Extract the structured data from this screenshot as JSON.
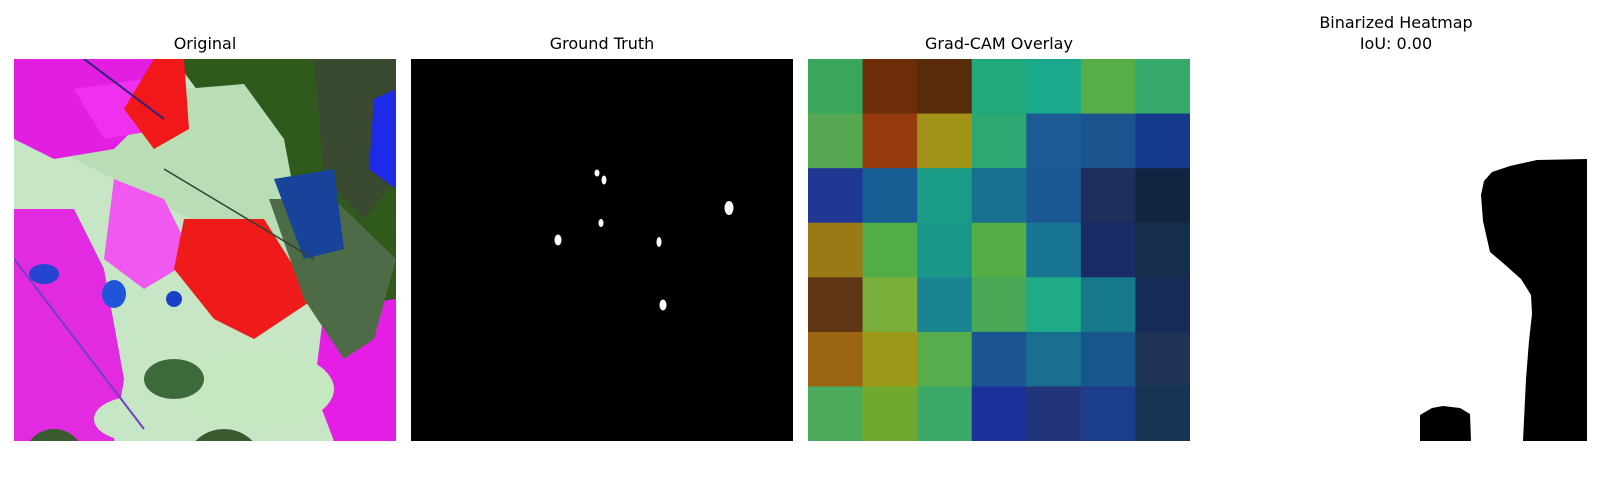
{
  "panels": [
    {
      "title": "Original"
    },
    {
      "title": "Ground Truth"
    },
    {
      "title": "Grad-CAM Overlay"
    },
    {
      "title": "Binarized Heatmap",
      "subtitle": "IoU: 0.00"
    }
  ],
  "gradcam": {
    "grid_size": 7,
    "colors": [
      [
        "#3aa65c",
        "#6e2d0a",
        "#5a2b0a",
        "#20a97a",
        "#1aa98a",
        "#57ad47",
        "#35a86a"
      ],
      [
        "#56a752",
        "#943a0c",
        "#a09318",
        "#2ca873",
        "#1b5a94",
        "#1b538f",
        "#173b8c"
      ],
      [
        "#1f3891",
        "#175e95",
        "#1a9c87",
        "#177090",
        "#1a5993",
        "#1f2e5a",
        "#122540"
      ],
      [
        "#997a17",
        "#52ad49",
        "#199789",
        "#55ad4a",
        "#177592",
        "#172b66",
        "#152e4a"
      ],
      [
        "#5e3616",
        "#7aae3b",
        "#1a8490",
        "#4aa956",
        "#1fab85",
        "#177a8b",
        "#172b58"
      ],
      [
        "#9c6514",
        "#9c9818",
        "#57ad4b",
        "#1b5493",
        "#19708e",
        "#16568b",
        "#1e3356"
      ],
      [
        "#4caa5d",
        "#71a92e",
        "#3aa968",
        "#1d309a",
        "#23357a",
        "#1c3d8d",
        "#173455"
      ]
    ]
  }
}
